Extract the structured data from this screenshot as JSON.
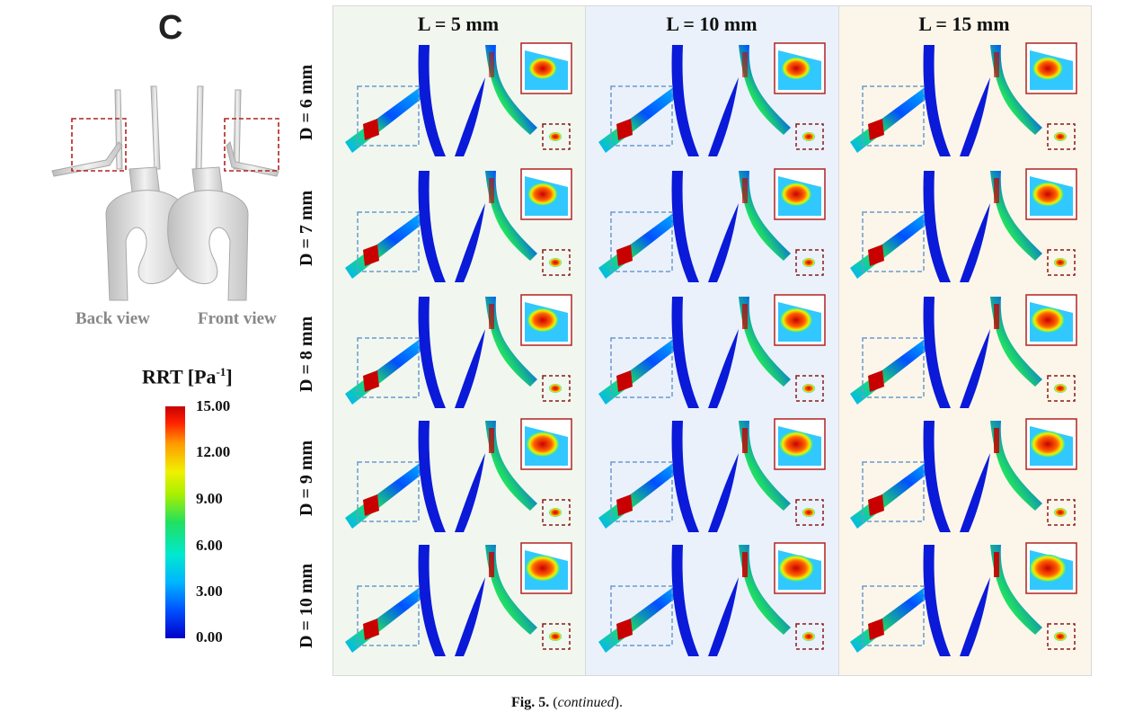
{
  "figure": {
    "panel_letter": "C",
    "views": {
      "back": "Back view",
      "front": "Front view"
    },
    "colorbar": {
      "title_main": "RRT [Pa",
      "title_sup": "-1",
      "title_end": "]",
      "ticks": [
        "15.00",
        "12.00",
        "9.00",
        "6.00",
        "3.00",
        "0.00"
      ],
      "colors": [
        "#0000c8",
        "#00b4ff",
        "#20e060",
        "#f0f000",
        "#ff9a00",
        "#c80000"
      ]
    },
    "columns": [
      "L = 5 mm",
      "L = 10 mm",
      "L = 15 mm"
    ],
    "rows": [
      "D = 6 mm",
      "D = 7 mm",
      "D = 8 mm",
      "D = 9 mm",
      "D = 10 mm"
    ]
  },
  "caption": {
    "label": "Fig. 5.",
    "text": " (",
    "italic": "continued",
    "end": ")."
  }
}
